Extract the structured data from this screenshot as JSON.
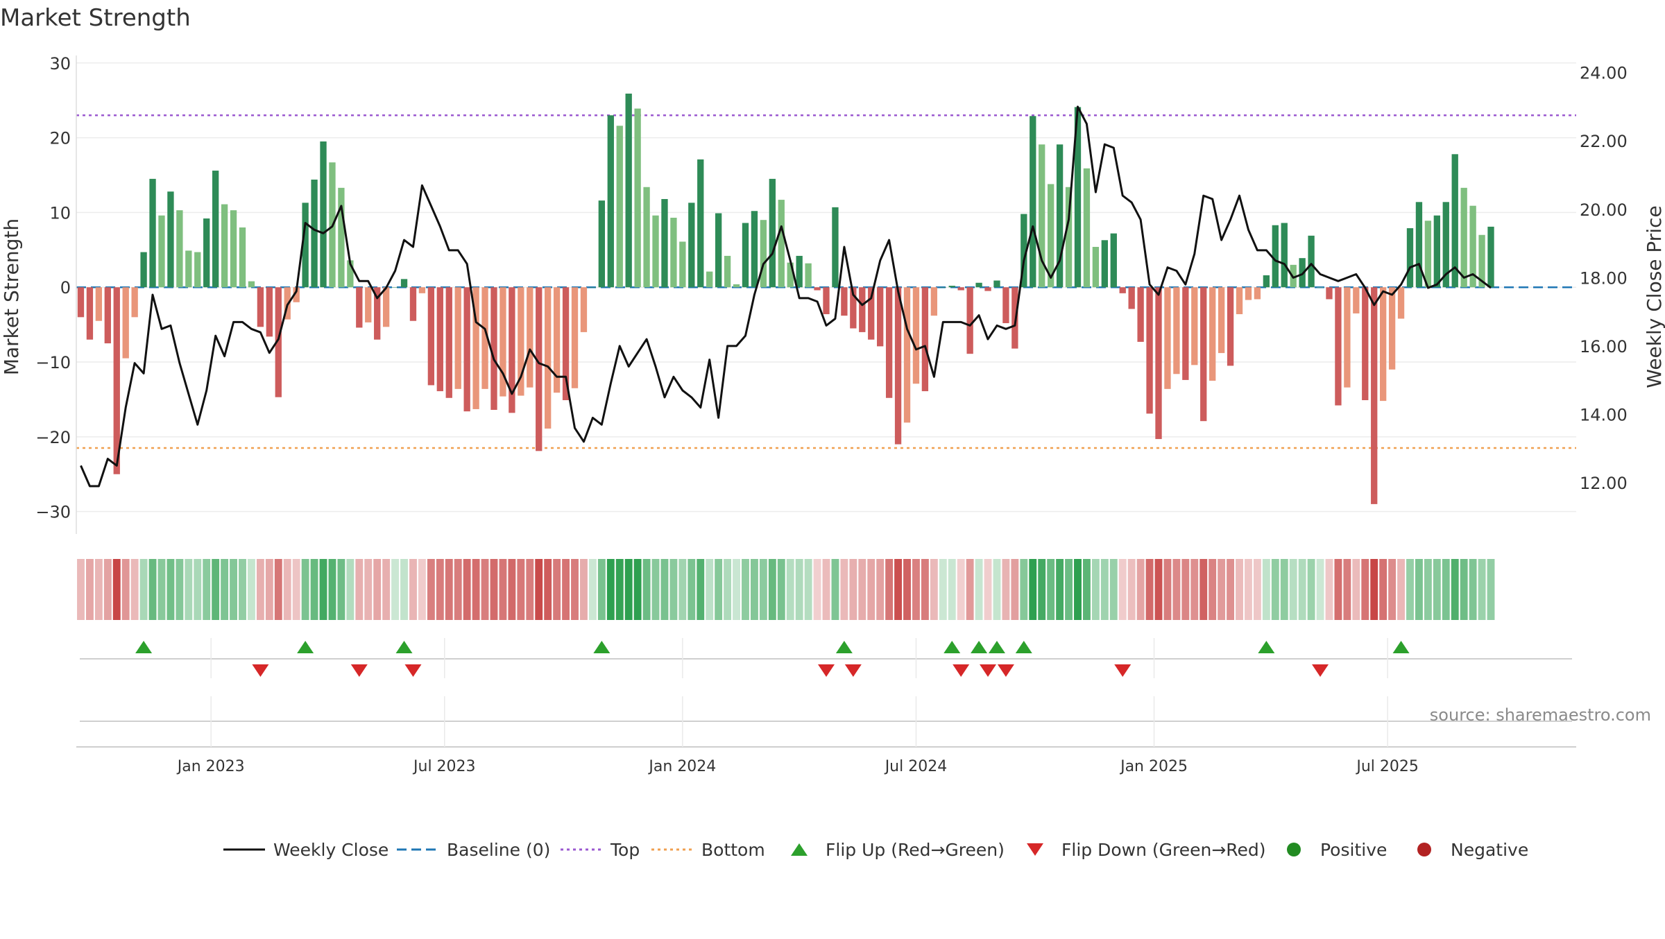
{
  "chart_data": {
    "type": "bar",
    "title": "Market Strength",
    "ylabel": "Market Strength",
    "y2label": "Weekly Close Price",
    "source": "source: sharemaestro.com",
    "ylim": [
      -33,
      31
    ],
    "y2lim": [
      10.5,
      24.5
    ],
    "yticks": [
      30,
      20,
      10,
      0,
      -10,
      -20,
      -30
    ],
    "ytick_labels": [
      "30",
      "20",
      "10",
      "0",
      "−10",
      "−20",
      "−30"
    ],
    "y2ticks": [
      24,
      22,
      20,
      18,
      16,
      14,
      12
    ],
    "y2tick_labels": [
      "24.00",
      "22.00",
      "20.00",
      "18.00",
      "16.00",
      "14.00",
      "12.00"
    ],
    "x_range": [
      0,
      167
    ],
    "xticks": [
      {
        "label": "Jan 2023",
        "x": 15
      },
      {
        "label": "Jul 2023",
        "x": 41
      },
      {
        "label": "Jan 2024",
        "x": 67.5
      },
      {
        "label": "Jul 2024",
        "x": 93.5
      },
      {
        "label": "Jan 2025",
        "x": 120
      },
      {
        "label": "Jul 2025",
        "x": 146
      }
    ],
    "top_line": 23,
    "bottom_line": -21.5,
    "baseline": 0,
    "colors": {
      "strong_pos": "#2e8b57",
      "weak_pos": "#7fbf7f",
      "strong_neg": "#cd5c5c",
      "weak_neg": "#e9967a",
      "close": "#111111",
      "baseline": "#1f77b4",
      "top": "#9b59d0",
      "bottom": "#f0a050",
      "flip_up": "#2ca02c",
      "flip_down": "#d62728",
      "positive": "#228b22",
      "negative": "#b22222",
      "grid": "#ececec",
      "text": "#333333"
    },
    "series": [
      {
        "name": "Market Strength",
        "values": [
          -4,
          -7,
          -4.5,
          -7.5,
          -25,
          -9.5,
          -4,
          4.7,
          14.5,
          9.6,
          12.8,
          10.3,
          4.9,
          4.7,
          9.2,
          15.6,
          11.1,
          10.3,
          8,
          0.8,
          -5.3,
          -6.6,
          -14.7,
          -4.3,
          -2,
          11.3,
          14.4,
          19.5,
          16.7,
          13.3,
          3.6,
          -5.4,
          -4.7,
          -7,
          -5.3,
          0,
          1.1,
          -4.5,
          -0.8,
          -13.1,
          -13.9,
          -14.8,
          -13.6,
          -16.6,
          -16.3,
          -13.6,
          -16.4,
          -14.6,
          -16.8,
          -14.5,
          -13.4,
          -21.9,
          -18.9,
          -14.1,
          -15.1,
          -13.5,
          -6,
          0,
          11.6,
          23,
          21.6,
          25.9,
          23.9,
          13.4,
          9.6,
          11.8,
          9.3,
          6.1,
          11.3,
          17.1,
          2.1,
          9.9,
          4.2,
          0.4,
          8.6,
          10.2,
          9,
          14.5,
          11.7,
          3.3,
          4.2,
          3.2,
          -0.4,
          -3.6,
          10.7,
          -3.8,
          -5.5,
          -6,
          -7,
          -7.9,
          -14.8,
          -21,
          -18.1,
          -12.9,
          -13.9,
          -3.8,
          0,
          0.2,
          -0.4,
          -8.9,
          0.6,
          -0.5,
          0.9,
          -4.8,
          -8.2,
          9.8,
          22.9,
          19.1,
          13.8,
          19.1,
          13.4,
          24.1,
          15.9,
          5.4,
          6.3,
          7.2,
          -0.8,
          -2.9,
          -7.3,
          -16.9,
          -20.3,
          -13.6,
          -11.6,
          -12.4,
          -10.4,
          -17.9,
          -12.5,
          -8.8,
          -10.5,
          -3.6,
          -1.7,
          -1.6,
          1.6,
          8.3,
          8.6,
          3,
          3.9,
          6.9,
          0,
          -1.6,
          -15.8,
          -13.4,
          -3.5,
          -15.1,
          -29,
          -15.2,
          -11,
          -4.2,
          7.9,
          11.4,
          8.9,
          9.6,
          11.4,
          17.8,
          13.3,
          10.9,
          7,
          8.1
        ]
      },
      {
        "name": "Weekly Close",
        "values": [
          12.5,
          11.9,
          11.9,
          12.7,
          12.5,
          14.2,
          15.5,
          15.2,
          17.5,
          16.5,
          16.6,
          15.5,
          14.6,
          13.7,
          14.7,
          16.3,
          15.7,
          16.7,
          16.7,
          16.5,
          16.4,
          15.8,
          16.2,
          17.2,
          17.6,
          19.6,
          19.4,
          19.3,
          19.5,
          20.1,
          18.4,
          17.9,
          17.9,
          17.4,
          17.7,
          18.2,
          19.1,
          18.9,
          20.7,
          20.1,
          19.5,
          18.8,
          18.8,
          18.4,
          16.7,
          16.5,
          15.6,
          15.2,
          14.6,
          15.1,
          15.9,
          15.5,
          15.4,
          15.1,
          15.1,
          13.6,
          13.2,
          13.9,
          13.7,
          14.9,
          16.0,
          15.4,
          15.8,
          16.2,
          15.4,
          14.5,
          15.1,
          14.7,
          14.5,
          14.2,
          15.6,
          13.9,
          16.0,
          16.0,
          16.3,
          17.5,
          18.4,
          18.7,
          19.5,
          18.5,
          17.4,
          17.4,
          17.3,
          16.6,
          16.8,
          18.9,
          17.5,
          17.2,
          17.4,
          18.5,
          19.1,
          17.6,
          16.5,
          15.9,
          16,
          15.1,
          16.7,
          16.7,
          16.7,
          16.6,
          16.9,
          16.2,
          16.6,
          16.5,
          16.6,
          18.5,
          19.5,
          18.5,
          18.0,
          18.5,
          19.7,
          23.0,
          22.5,
          20.5,
          21.9,
          21.8,
          20.4,
          20.2,
          19.7,
          17.8,
          17.5,
          18.3,
          18.2,
          17.8,
          18.7,
          20.4,
          20.3,
          19.1,
          19.7,
          20.4,
          19.4,
          18.8,
          18.8,
          18.5,
          18.4,
          18.0,
          18.1,
          18.4,
          18.1,
          18.0,
          17.9,
          18.0,
          18.1,
          17.7,
          17.2,
          17.6,
          17.5,
          17.8,
          18.3,
          18.4,
          17.7,
          17.8,
          18.1,
          18.3,
          18.0,
          18.1,
          17.9,
          17.7
        ]
      }
    ],
    "flip_up_idx": [
      7,
      25,
      36,
      58,
      85,
      97,
      100,
      102,
      105,
      132,
      147
    ],
    "flip_down_idx": [
      20,
      31,
      37,
      83,
      86,
      98,
      101,
      103,
      116,
      138
    ],
    "legend": [
      {
        "label": "Weekly Close",
        "kind": "solid-line"
      },
      {
        "label": "Baseline (0)",
        "kind": "dash-line"
      },
      {
        "label": "Top",
        "kind": "dot-line-top"
      },
      {
        "label": "Bottom",
        "kind": "dot-line-bottom"
      },
      {
        "label": "Flip Up (Red→Green)",
        "kind": "triangle-up"
      },
      {
        "label": "Flip Down (Green→Red)",
        "kind": "triangle-down"
      },
      {
        "label": "Positive",
        "kind": "dot-positive"
      },
      {
        "label": "Negative",
        "kind": "dot-negative"
      }
    ]
  }
}
